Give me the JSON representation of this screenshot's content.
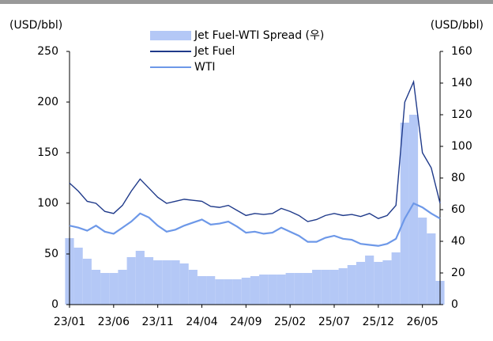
{
  "chart_data": {
    "type": "line",
    "y_label": "(USD/bbl)",
    "y2_label": "(USD/bbl)",
    "categories": [
      "23/01",
      null,
      null,
      null,
      null,
      "23/06",
      null,
      null,
      null,
      null,
      "23/11",
      null,
      null,
      null,
      null,
      "24/04",
      null,
      null,
      null,
      null,
      "24/09",
      null,
      null,
      null,
      null,
      "25/02",
      null,
      null,
      null,
      null,
      "25/07",
      null,
      null,
      null,
      null,
      "25/12",
      null,
      null,
      null,
      null,
      "26/05",
      null,
      null
    ],
    "series": [
      {
        "name": "Jet Fuel-WTI Spread (우)",
        "type": "bar",
        "axis": "y2",
        "color": "#b4c8f6",
        "values": [
          42,
          36,
          29,
          22,
          20,
          20,
          22,
          30,
          34,
          30,
          28,
          28,
          28,
          26,
          22,
          18,
          18,
          16,
          16,
          16,
          17,
          18,
          19,
          19,
          19,
          20,
          20,
          20,
          22,
          22,
          22,
          23,
          25,
          27,
          31,
          27,
          28,
          33,
          115,
          120,
          55,
          45,
          15
        ]
      },
      {
        "name": "Jet Fuel",
        "type": "line",
        "color": "#1f3a8a",
        "values": [
          120,
          112,
          102,
          100,
          92,
          90,
          98,
          112,
          124,
          115,
          106,
          100,
          102,
          104,
          103,
          102,
          97,
          96,
          98,
          93,
          88,
          90,
          89,
          90,
          95,
          92,
          88,
          82,
          84,
          88,
          90,
          88,
          89,
          87,
          90,
          85,
          88,
          98,
          200,
          220,
          150,
          135,
          100
        ]
      },
      {
        "name": "WTI",
        "type": "line",
        "color": "#6d98e8",
        "values": [
          78,
          76,
          73,
          78,
          72,
          70,
          76,
          82,
          90,
          86,
          78,
          72,
          74,
          78,
          81,
          84,
          79,
          80,
          82,
          77,
          71,
          72,
          70,
          71,
          76,
          72,
          68,
          62,
          62,
          66,
          68,
          65,
          64,
          60,
          59,
          58,
          60,
          65,
          85,
          100,
          96,
          90,
          85
        ]
      }
    ],
    "ylim": [
      0,
      250
    ],
    "yticks": [
      0,
      50,
      100,
      150,
      200,
      250
    ],
    "y2lim": [
      0,
      160
    ],
    "y2ticks": [
      0,
      20,
      40,
      60,
      80,
      100,
      120,
      140,
      160
    ]
  }
}
